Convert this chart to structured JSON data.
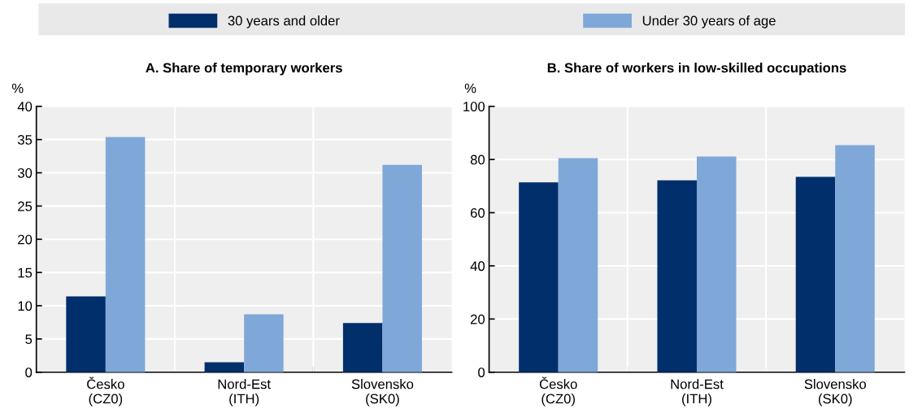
{
  "chart_data": [
    {
      "type": "bar",
      "title": "A. Share of temporary workers",
      "ylabel": "%",
      "categories": [
        "Česko\n(CZ0)",
        "Nord-Est\n(ITH)",
        "Slovensko\n(SK0)"
      ],
      "series": [
        {
          "name": "30 years and older",
          "color": "#002f6c",
          "values": [
            11.4,
            1.5,
            7.4
          ]
        },
        {
          "name": "Under 30 years of age",
          "color": "#7fa8d9",
          "values": [
            35.4,
            8.7,
            31.2
          ]
        }
      ],
      "ylim": [
        0,
        40
      ],
      "yticks": [
        0,
        5,
        10,
        15,
        20,
        25,
        30,
        35,
        40
      ],
      "grid": true,
      "legend": "top"
    },
    {
      "type": "bar",
      "title": "B. Share of workers in low-skilled occupations",
      "ylabel": "%",
      "categories": [
        "Česko\n(CZ0)",
        "Nord-Est\n(ITH)",
        "Slovensko\n(SK0)"
      ],
      "series": [
        {
          "color": "#002f6c",
          "values": [
            71.4,
            72.2,
            73.5
          ]
        },
        {
          "color": "#7fa8d9",
          "values": [
            80.5,
            81.1,
            85.4
          ]
        }
      ],
      "ylim": [
        0,
        100
      ],
      "yticks": [
        0,
        20,
        40,
        60,
        80,
        100
      ],
      "grid": true
    }
  ]
}
